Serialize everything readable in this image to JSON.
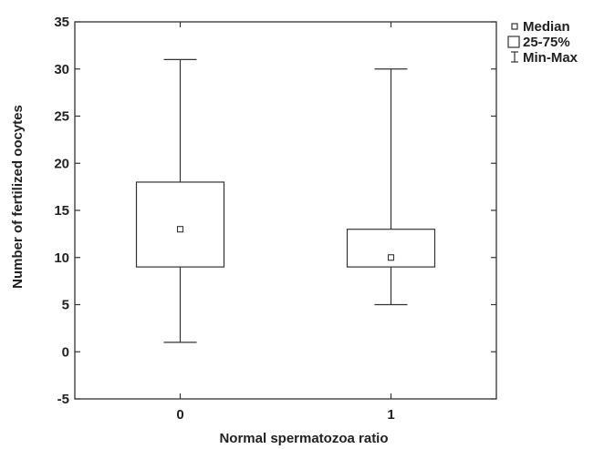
{
  "chart_data": {
    "type": "boxplot",
    "xlabel": "Normal spermatozoa ratio",
    "ylabel": "Number of fertilized oocytes",
    "ylim": [
      -5,
      35
    ],
    "yticks": [
      -5,
      0,
      5,
      10,
      15,
      20,
      25,
      30,
      35
    ],
    "grid": false,
    "legend_position": "top-right",
    "legend": {
      "median": "Median",
      "box": "25-75%",
      "whisker": "Min-Max"
    },
    "categories": [
      "0",
      "1"
    ],
    "boxes": [
      {
        "category": "0",
        "min": 1,
        "q1": 9,
        "median": 13,
        "q3": 18,
        "max": 31
      },
      {
        "category": "1",
        "min": 5,
        "q1": 9,
        "median": 10,
        "q3": 13,
        "max": 30
      }
    ],
    "colors": {
      "stroke": "#333333",
      "fill": "#ffffff",
      "text": "#222222"
    }
  }
}
